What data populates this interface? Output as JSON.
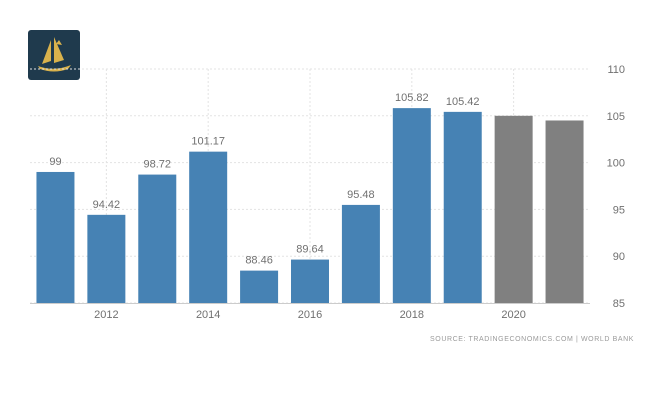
{
  "logo": {
    "icon": "golden-sailboat-logo-icon",
    "colors": {
      "bg": "#1f3a4d",
      "gold": "#d9b24c"
    }
  },
  "colors": {
    "actual": "#4682b4",
    "forecast": "#808080",
    "label": "#707070",
    "grid": "#e3e3e3"
  },
  "chart_data": {
    "type": "bar",
    "x": [
      2011,
      2012,
      2013,
      2014,
      2015,
      2016,
      2017,
      2018,
      2019,
      2020,
      2021
    ],
    "values": [
      99,
      94.42,
      98.72,
      101.17,
      88.46,
      89.64,
      95.48,
      105.82,
      105.42,
      105.0,
      104.5
    ],
    "data_labels": [
      "99",
      "94.42",
      "98.72",
      "101.17",
      "88.46",
      "89.64",
      "95.48",
      "105.82",
      "105.42",
      "",
      ""
    ],
    "forecast": [
      false,
      false,
      false,
      false,
      false,
      false,
      false,
      false,
      false,
      true,
      true
    ],
    "x_tick_labels": [
      "2012",
      "2014",
      "2016",
      "2018",
      "2020"
    ],
    "y_tick_labels": [
      "85",
      "90",
      "95",
      "100",
      "105",
      "110"
    ],
    "ylim": [
      85,
      110
    ],
    "y_axis_side": "right",
    "grid": true,
    "title": "",
    "xlabel": "",
    "ylabel": ""
  },
  "source_text": "SOURCE: TRADINGECONOMICS.COM  |  WORLD BANK"
}
